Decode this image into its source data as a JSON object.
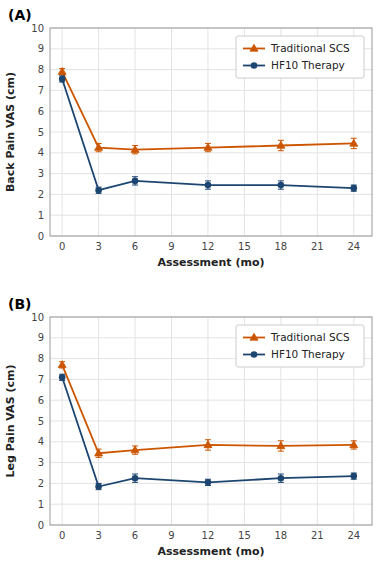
{
  "chart_data": [
    {
      "type": "line",
      "title": "(A)",
      "xlabel": "Assessment (mo)",
      "ylabel": "Back Pain VAS (cm)",
      "x": [
        0,
        3,
        6,
        12,
        18,
        24
      ],
      "series": [
        {
          "name": "Traditional SCS",
          "color": "#cc5500",
          "marker": "triangle",
          "values": [
            7.9,
            4.25,
            4.15,
            4.25,
            4.35,
            4.45
          ],
          "errors": [
            0.15,
            0.2,
            0.2,
            0.2,
            0.25,
            0.25
          ]
        },
        {
          "name": "HF10 Therapy",
          "color": "#1c4570",
          "marker": "circle",
          "values": [
            7.55,
            2.2,
            2.65,
            2.45,
            2.45,
            2.3
          ],
          "errors": [
            0.15,
            0.15,
            0.2,
            0.2,
            0.2,
            0.15
          ]
        }
      ],
      "xlim": [
        -1,
        25.5
      ],
      "xticks": [
        0,
        3,
        6,
        9,
        12,
        15,
        18,
        21,
        24
      ],
      "ylim": [
        0,
        10
      ],
      "yticks": [
        0,
        1,
        2,
        3,
        4,
        5,
        6,
        7,
        8,
        9,
        10
      ],
      "grid": true,
      "legend": "upper-right"
    },
    {
      "type": "line",
      "title": "(B)",
      "xlabel": "Assessment (mo)",
      "ylabel": "Leg Pain VAS (cm)",
      "x": [
        0,
        3,
        6,
        12,
        18,
        24
      ],
      "series": [
        {
          "name": "Traditional SCS",
          "color": "#cc5500",
          "marker": "triangle",
          "values": [
            7.7,
            3.45,
            3.6,
            3.85,
            3.8,
            3.85
          ],
          "errors": [
            0.15,
            0.2,
            0.2,
            0.25,
            0.25,
            0.2
          ]
        },
        {
          "name": "HF10 Therapy",
          "color": "#1c4570",
          "marker": "circle",
          "values": [
            7.1,
            1.85,
            2.25,
            2.05,
            2.25,
            2.35
          ],
          "errors": [
            0.15,
            0.15,
            0.2,
            0.15,
            0.2,
            0.15
          ]
        }
      ],
      "xlim": [
        -1,
        25.5
      ],
      "xticks": [
        0,
        3,
        6,
        9,
        12,
        15,
        18,
        21,
        24
      ],
      "ylim": [
        0,
        10
      ],
      "yticks": [
        0,
        1,
        2,
        3,
        4,
        5,
        6,
        7,
        8,
        9,
        10
      ],
      "grid": true,
      "legend": "upper-right"
    }
  ]
}
